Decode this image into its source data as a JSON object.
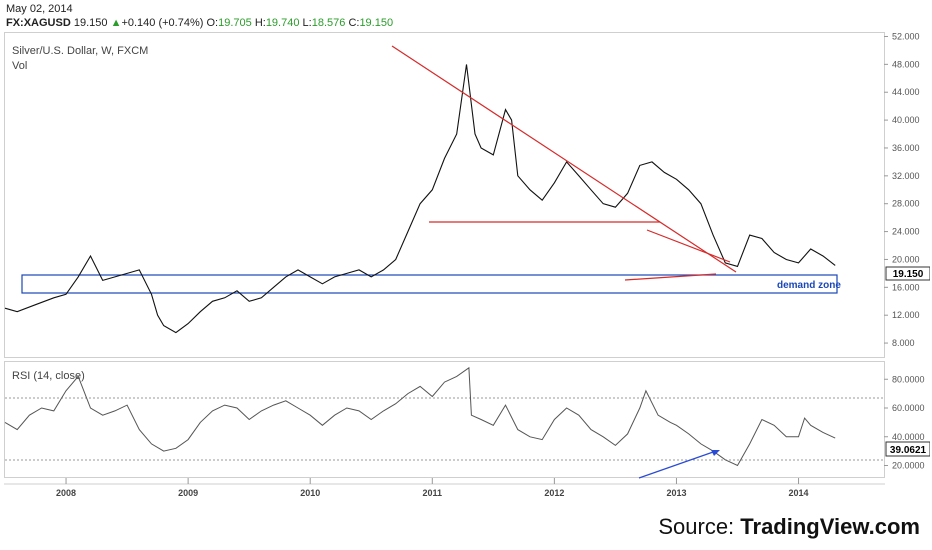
{
  "header": {
    "date": "May 02, 2014",
    "symbol": "FX:XAGUSD",
    "last": "19.150",
    "change": "+0.140 (+0.74%)",
    "open_label": "O:",
    "open": "19.705",
    "high_label": "H:",
    "high": "19.740",
    "low_label": "L:",
    "low": "18.576",
    "close_label": "C:",
    "close": "19.150",
    "up_arrow": "▲"
  },
  "price_pane": {
    "title": "Silver/U.S. Dollar, W, FXCM",
    "subtitle": "Vol",
    "last_price_label": "19.150",
    "annotation": "demand zone"
  },
  "rsi_pane": {
    "title": "RSI (14, close)",
    "last_label": "39.0621"
  },
  "source": {
    "prefix": "Source: ",
    "name": "TradingView.com"
  },
  "colors": {
    "trendline": "#d62a2a",
    "zone": "#1a47b8",
    "rsi_trend": "#2a4bd6",
    "bars": "#111111"
  },
  "chart_data": [
    {
      "type": "line",
      "title": "Silver/U.S. Dollar, W, FXCM",
      "x_tick_labels": [
        "2008",
        "2009",
        "2010",
        "2011",
        "2012",
        "2013",
        "2014"
      ],
      "y_tick_labels": [
        "8.000",
        "12.000",
        "16.000",
        "20.000",
        "24.000",
        "28.000",
        "32.000",
        "36.000",
        "40.000",
        "44.000",
        "48.000",
        "52.000"
      ],
      "ylim": [
        6.0,
        52.5
      ],
      "xlim": [
        2007.5,
        2014.7
      ],
      "series": [
        {
          "x": [
            2007.5,
            2007.6,
            2007.75,
            2007.9,
            2008.0,
            2008.1,
            2008.2,
            2008.3,
            2008.4,
            2008.5,
            2008.6,
            2008.7,
            2008.75,
            2008.8,
            2008.9,
            2009.0,
            2009.1,
            2009.2,
            2009.3,
            2009.4,
            2009.5,
            2009.6,
            2009.7,
            2009.8,
            2009.9,
            2010.0,
            2010.1,
            2010.2,
            2010.3,
            2010.4,
            2010.5,
            2010.6,
            2010.7,
            2010.8,
            2010.9,
            2011.0,
            2011.1,
            2011.2,
            2011.28,
            2011.35,
            2011.4,
            2011.5,
            2011.6,
            2011.65,
            2011.7,
            2011.8,
            2011.9,
            2012.0,
            2012.1,
            2012.2,
            2012.3,
            2012.4,
            2012.5,
            2012.6,
            2012.7,
            2012.8,
            2012.9,
            2013.0,
            2013.1,
            2013.2,
            2013.3,
            2013.4,
            2013.5,
            2013.6,
            2013.7,
            2013.8,
            2013.9,
            2014.0,
            2014.1,
            2014.2,
            2014.3
          ],
          "values": [
            13.0,
            12.5,
            13.5,
            14.5,
            15.0,
            17.5,
            20.5,
            17.0,
            17.5,
            18.0,
            18.5,
            15.0,
            12.0,
            10.5,
            9.5,
            10.8,
            12.5,
            14.0,
            14.5,
            15.5,
            14.0,
            14.5,
            16.0,
            17.5,
            18.5,
            17.5,
            16.5,
            17.5,
            18.0,
            18.5,
            17.5,
            18.5,
            20.0,
            24.0,
            28.0,
            30.0,
            34.5,
            38.0,
            48.0,
            38.0,
            36.0,
            35.0,
            41.5,
            40.0,
            32.0,
            30.0,
            28.5,
            31.0,
            34.0,
            32.0,
            30.0,
            28.0,
            27.5,
            29.5,
            33.5,
            34.0,
            32.5,
            31.5,
            30.0,
            28.0,
            23.5,
            19.5,
            19.0,
            23.5,
            23.0,
            21.0,
            20.0,
            19.5,
            21.5,
            20.5,
            19.15
          ]
        }
      ],
      "annotations": [
        "demand zone"
      ]
    },
    {
      "type": "line",
      "title": "RSI (14, close)",
      "x_tick_labels": [
        "2008",
        "2009",
        "2010",
        "2011",
        "2012",
        "2013",
        "2014"
      ],
      "y_tick_labels": [
        "20.0000",
        "40.0000",
        "60.0000",
        "80.0000"
      ],
      "ylim": [
        12,
        92
      ],
      "xlim": [
        2007.5,
        2014.7
      ],
      "series": [
        {
          "x": [
            2007.5,
            2007.6,
            2007.7,
            2007.8,
            2007.9,
            2008.0,
            2008.1,
            2008.2,
            2008.3,
            2008.4,
            2008.5,
            2008.6,
            2008.7,
            2008.8,
            2008.9,
            2009.0,
            2009.1,
            2009.2,
            2009.3,
            2009.4,
            2009.5,
            2009.6,
            2009.7,
            2009.8,
            2009.9,
            2010.0,
            2010.1,
            2010.2,
            2010.3,
            2010.4,
            2010.5,
            2010.6,
            2010.7,
            2010.8,
            2010.9,
            2011.0,
            2011.1,
            2011.2,
            2011.3,
            2011.32,
            2011.4,
            2011.5,
            2011.6,
            2011.7,
            2011.8,
            2011.9,
            2012.0,
            2012.1,
            2012.2,
            2012.3,
            2012.4,
            2012.5,
            2012.6,
            2012.7,
            2012.75,
            2012.85,
            2012.95,
            2013.0,
            2013.1,
            2013.2,
            2013.3,
            2013.4,
            2013.5,
            2013.6,
            2013.7,
            2013.8,
            2013.9,
            2014.0,
            2014.05,
            2014.1,
            2014.2,
            2014.3
          ],
          "values": [
            50,
            45,
            55,
            60,
            58,
            72,
            82,
            60,
            55,
            58,
            62,
            45,
            35,
            30,
            32,
            38,
            50,
            58,
            62,
            60,
            52,
            58,
            62,
            65,
            60,
            55,
            48,
            55,
            60,
            58,
            52,
            58,
            63,
            70,
            75,
            68,
            78,
            82,
            88,
            55,
            52,
            48,
            62,
            45,
            40,
            38,
            52,
            60,
            55,
            45,
            40,
            34,
            42,
            60,
            72,
            55,
            50,
            48,
            42,
            35,
            30,
            24,
            20,
            35,
            52,
            48,
            40,
            40,
            53,
            48,
            43,
            39.06
          ]
        }
      ]
    }
  ]
}
